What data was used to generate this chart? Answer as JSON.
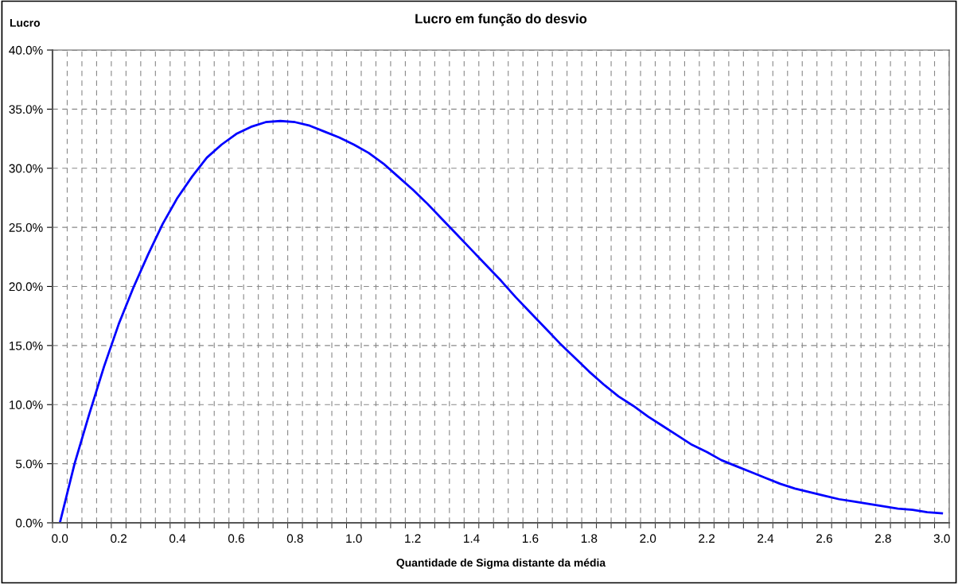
{
  "chart_data": {
    "type": "line",
    "title": "Lucro em função do desvio",
    "xlabel": "Quantidade de Sigma distante da média",
    "ylabel": "Lucro",
    "categories": [
      "0.0",
      null,
      null,
      null,
      "0.2",
      null,
      null,
      null,
      "0.4",
      null,
      null,
      null,
      "0.6",
      null,
      null,
      null,
      "0.8",
      null,
      null,
      null,
      "1.0",
      null,
      null,
      null,
      "1.2",
      null,
      null,
      null,
      "1.4",
      null,
      null,
      null,
      "1.6",
      null,
      null,
      null,
      "1.8",
      null,
      null,
      null,
      "2.0",
      null,
      null,
      null,
      "2.2",
      null,
      null,
      null,
      "2.4",
      null,
      null,
      null,
      "2.6",
      null,
      null,
      null,
      "2.8",
      null,
      null,
      null,
      "3.0"
    ],
    "series": [
      {
        "color": "#0000ff",
        "values": [
          0,
          5.0,
          9.2,
          13.2,
          16.8,
          19.9,
          22.7,
          25.3,
          27.5,
          29.3,
          30.9,
          32.0,
          32.9,
          33.5,
          33.9,
          34.0,
          33.9,
          33.6,
          33.1,
          32.6,
          32.0,
          31.3,
          30.4,
          29.3,
          28.2,
          27.0,
          25.7,
          24.4,
          23.1,
          21.8,
          20.5,
          19.1,
          17.8,
          16.5,
          15.2,
          14.0,
          12.8,
          11.7,
          10.7,
          9.9,
          9.0,
          8.2,
          7.4,
          6.6,
          6.0,
          5.3,
          4.8,
          4.3,
          3.8,
          3.3,
          2.9,
          2.6,
          2.3,
          2.0,
          1.8,
          1.6,
          1.4,
          1.2,
          1.1,
          0.9,
          0.8
        ]
      }
    ],
    "ylim": [
      0,
      40
    ],
    "yticks": [
      {
        "value": 0,
        "label": "0.0%"
      },
      {
        "value": 5,
        "label": "5.0%"
      },
      {
        "value": 10,
        "label": "10.0%"
      },
      {
        "value": 15,
        "label": "15.0%"
      },
      {
        "value": 20,
        "label": "20.0%"
      },
      {
        "value": 25,
        "label": "25.0%"
      },
      {
        "value": 30,
        "label": "30.0%"
      },
      {
        "value": 35,
        "label": "35.0%"
      },
      {
        "value": 40,
        "label": "40.0%"
      }
    ],
    "grid": true,
    "marker": "none",
    "line_style": "solid"
  }
}
